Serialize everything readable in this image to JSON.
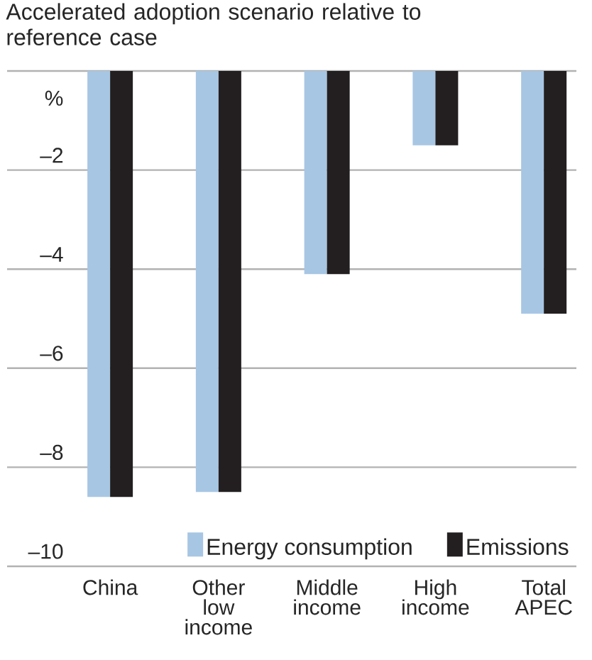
{
  "chart_data": {
    "type": "bar",
    "title": "Accelerated adoption scenario relative to reference case",
    "ylabel": "%",
    "categories": [
      "China",
      "Other low income",
      "Middle income",
      "High income",
      "Total APEC"
    ],
    "series": [
      {
        "name": "Energy consumption",
        "color": "#a7c6e3",
        "values": [
          -8.6,
          -8.5,
          -4.1,
          -1.5,
          -4.9
        ]
      },
      {
        "name": "Emissions",
        "color": "#231f20",
        "values": [
          -8.6,
          -8.5,
          -4.1,
          -1.5,
          -4.9
        ]
      }
    ],
    "ylim": [
      -10,
      0
    ],
    "yticks": [
      {
        "value": -10,
        "label": "–10"
      },
      {
        "value": -8,
        "label": "–8"
      },
      {
        "value": -6,
        "label": "–6"
      },
      {
        "value": -4,
        "label": "–4"
      },
      {
        "value": -2,
        "label": "–2"
      },
      {
        "value": 0,
        "label": null
      }
    ],
    "grid": "y",
    "legend": "bottom"
  }
}
